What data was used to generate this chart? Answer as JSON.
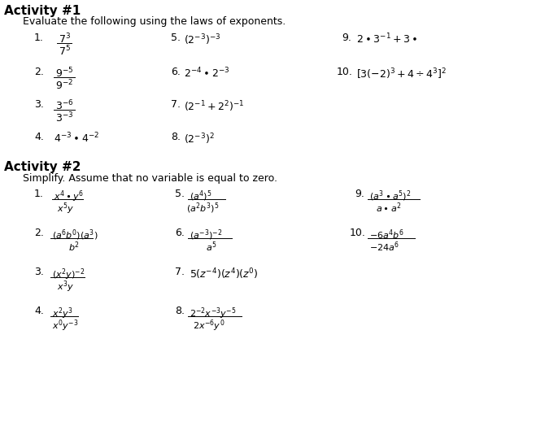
{
  "bg_color": "#ffffff",
  "text_color": "#000000",
  "title1": "Activity #1",
  "sub1": "Evaluate the following using the laws of exponents.",
  "title2": "Activity #2",
  "sub2": "Simplify. Assume that no variable is equal to zero.",
  "figw": 6.7,
  "figh": 5.24,
  "dpi": 100
}
